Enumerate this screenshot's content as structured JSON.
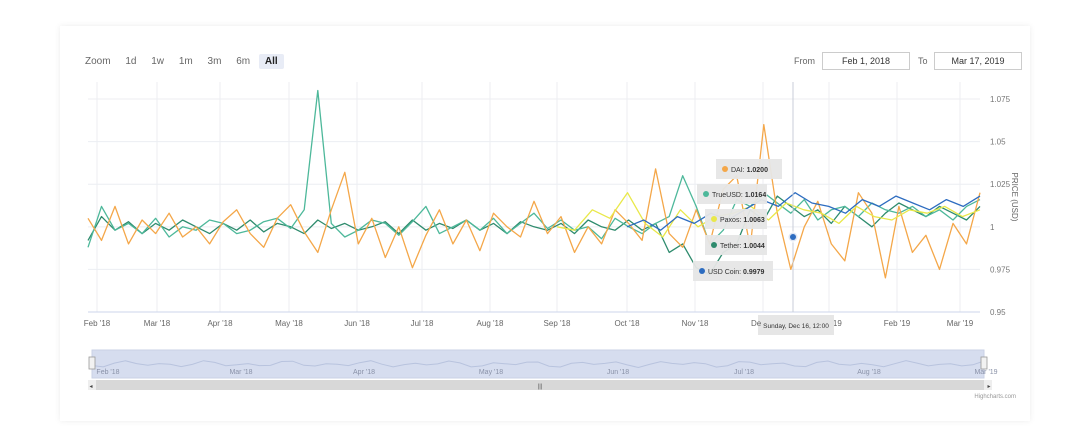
{
  "zoom": {
    "label": "Zoom",
    "buttons": [
      "1d",
      "1w",
      "1m",
      "3m",
      "6m",
      "All"
    ],
    "active": "All"
  },
  "range": {
    "from_label": "From",
    "from_value": "Feb 1, 2018",
    "to_label": "To",
    "to_value": "Mar 17, 2019"
  },
  "credit": "Highcharts.com",
  "colors": {
    "dai": "#f4a749",
    "trueusd": "#4db89a",
    "paxos": "#e9e84a",
    "tether": "#2e8b6d",
    "usdcoin": "#2d6cc0",
    "navigator_fill": "#d6ddef"
  },
  "chart_data": {
    "type": "line",
    "ylabel": "PRICE (USD)",
    "ylim": [
      0.95,
      1.085
    ],
    "y_ticks": [
      "0.95",
      "0.975",
      "1",
      "1.025",
      "1.05",
      "1.075"
    ],
    "x_ticks": [
      "Feb '18",
      "Mar '18",
      "Apr '18",
      "May '18",
      "Jun '18",
      "Jul '18",
      "Aug '18",
      "Sep '18",
      "Oct '18",
      "Nov '18",
      "Dec '18",
      "Jan '19",
      "Feb '19",
      "Mar '19"
    ],
    "grid": true,
    "series": [
      {
        "name": "DAI",
        "key": "dai",
        "start": "Feb '18",
        "values": [
          1.005,
          0.992,
          1.012,
          0.99,
          1.004,
          0.996,
          1.008,
          0.994,
          1.0,
          0.99,
          1.003,
          1.01,
          0.996,
          0.988,
          1.005,
          1.013,
          0.997,
          0.985,
          1.01,
          1.032,
          0.99,
          1.005,
          0.982,
          1.0,
          0.976,
          0.995,
          1.01,
          0.99,
          1.004,
          0.986,
          1.008,
          1.0,
          0.994,
          1.015,
          0.996,
          1.006,
          0.985,
          1.0,
          0.99,
          1.01,
          1.002,
          0.992,
          1.034,
          0.996,
          0.988,
          1.01,
          0.99,
          1.022,
          1.03,
          0.988,
          1.06,
          1.008,
          0.975,
          1.0,
          1.015,
          0.99,
          0.98,
          1.02,
          1.008,
          0.97,
          1.012,
          0.985,
          0.995,
          0.975,
          1.002,
          0.99,
          1.02
        ]
      },
      {
        "name": "TrueUSD",
        "key": "trueusd",
        "start": "Feb '18",
        "values": [
          0.988,
          1.012,
          0.998,
          1.002,
          0.996,
          1.005,
          0.994,
          1.0,
          0.998,
          1.004,
          1.002,
          0.996,
          0.998,
          1.003,
          1.005,
          0.999,
          1.01,
          1.08,
          1.002,
          0.994,
          0.998,
          1.004,
          1.002,
          0.995,
          1.003,
          1.012,
          0.996,
          1.0,
          1.004,
          0.998,
          1.005,
          0.996,
          1.002,
          1.008,
          0.999,
          1.004,
          0.998,
          1.0,
          0.993,
          1.005,
          1.0,
          0.996,
          1.002,
          1.006,
          1.03,
          1.012,
          0.99,
          0.998,
          1.016,
          1.012,
          1.02,
          1.014,
          1.008,
          1.016,
          1.004,
          1.01,
          1.012,
          1.006,
          1.014,
          1.01,
          1.008,
          1.012,
          1.006,
          1.01,
          1.004,
          1.012,
          1.016
        ]
      },
      {
        "name": "Paxos",
        "key": "paxos",
        "start": "Sep '18",
        "values": [
          1.0,
          0.998,
          1.01,
          1.005,
          1.02,
          1.002,
          0.994,
          1.01,
          1.0,
          1.006,
          1.008,
          1.012,
          1.004,
          1.014,
          1.01,
          1.008,
          1.002,
          1.012,
          1.006,
          1.004,
          1.01,
          1.008,
          1.012,
          1.006,
          1.01
        ]
      },
      {
        "name": "Tether",
        "key": "tether",
        "start": "Feb '18",
        "values": [
          0.992,
          1.006,
          0.998,
          1.003,
          0.996,
          1.002,
          0.998,
          1.004,
          1.0,
          0.996,
          1.002,
          0.998,
          1.004,
          0.997,
          1.002,
          1.0,
          0.996,
          1.004,
          0.999,
          1.002,
          0.998,
          1.0,
          1.003,
          0.996,
          1.004,
          0.998,
          1.002,
          0.999,
          1.004,
          0.998,
          1.002,
          0.996,
          1.003,
          1.0,
          0.998,
          1.002,
          0.996,
          1.004,
          1.0,
          0.998,
          1.004,
          0.998,
          1.002,
          0.985,
          0.99,
          0.976,
          0.972,
          0.985,
          0.99,
          1.01,
          1.004,
          1.018,
          1.012,
          1.006,
          1.01,
          1.002,
          1.012,
          1.006,
          1.0,
          1.008,
          1.014,
          1.01,
          1.006,
          1.012,
          1.008,
          1.004,
          1.012
        ]
      },
      {
        "name": "USD Coin",
        "key": "usdcoin",
        "start": "Oct '18",
        "values": [
          1.0,
          1.004,
          0.998,
          1.006,
          1.002,
          1.008,
          1.004,
          1.01,
          1.016,
          1.012,
          1.02,
          1.014,
          1.012,
          1.008,
          1.016,
          1.012,
          1.018,
          1.014,
          1.01,
          1.016,
          1.012,
          1.018
        ]
      }
    ],
    "tooltip": {
      "date": "Sunday, Dec 16, 12:00",
      "items": [
        {
          "name": "DAI",
          "key": "dai",
          "value": "1.0200"
        },
        {
          "name": "TrueUSD",
          "key": "trueusd",
          "value": "1.0164"
        },
        {
          "name": "Paxos",
          "key": "paxos",
          "value": "1.0063"
        },
        {
          "name": "Tether",
          "key": "tether",
          "value": "1.0044"
        },
        {
          "name": "USD Coin",
          "key": "usdcoin",
          "value": "0.9979"
        }
      ]
    },
    "navigator": {
      "x_ticks": [
        "Feb '18",
        "Mar '18",
        "Apr '18",
        "May '18",
        "Jun '18",
        "Jul '18",
        "Aug '18",
        "Mar '19"
      ]
    }
  }
}
